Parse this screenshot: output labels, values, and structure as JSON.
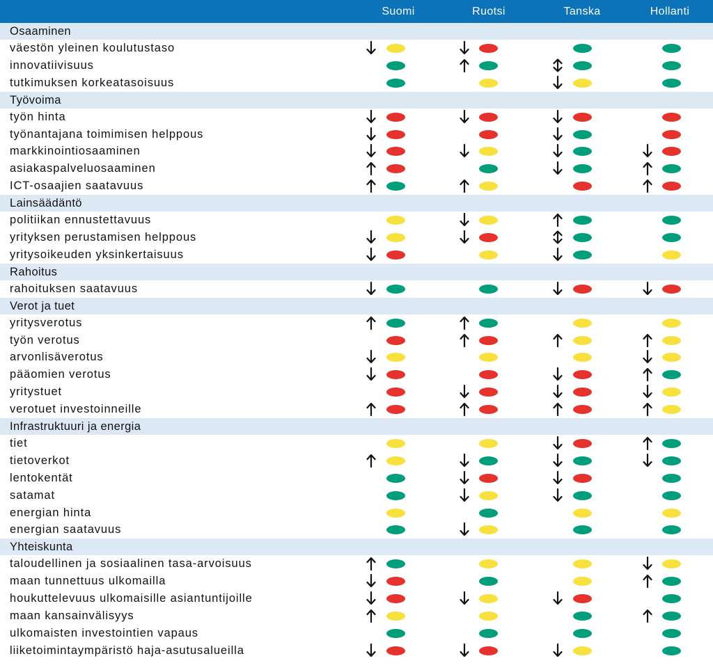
{
  "colors": {
    "header_bg": "#0c73b8",
    "category_bg": "#dce9f4",
    "green": "#009e7a",
    "yellow": "#f8e03f",
    "red": "#e5322d"
  },
  "countries": [
    "Suomi",
    "Ruotsi",
    "Tanska",
    "Hollanti"
  ],
  "sections": [
    {
      "title": "Osaaminen",
      "rows": [
        {
          "label": "väestön yleinen koulutustaso",
          "cells": [
            [
              "down",
              "yellow"
            ],
            [
              "down",
              "red"
            ],
            [
              "",
              "green"
            ],
            [
              "",
              "green"
            ]
          ]
        },
        {
          "label": "innovatiivisuus",
          "cells": [
            [
              "",
              "green"
            ],
            [
              "up",
              "green"
            ],
            [
              "updown",
              "green"
            ],
            [
              "",
              "green"
            ]
          ]
        },
        {
          "label": "tutkimuksen korkeatasoisuus",
          "cells": [
            [
              "",
              "green"
            ],
            [
              "",
              "yellow"
            ],
            [
              "down",
              "yellow"
            ],
            [
              "",
              "green"
            ]
          ]
        }
      ]
    },
    {
      "title": "Työvoima",
      "rows": [
        {
          "label": "työn hinta",
          "cells": [
            [
              "down",
              "red"
            ],
            [
              "down",
              "red"
            ],
            [
              "down",
              "red"
            ],
            [
              "",
              "red"
            ]
          ]
        },
        {
          "label": "työnantajana toimimisen helppous",
          "cells": [
            [
              "down",
              "red"
            ],
            [
              "",
              "red"
            ],
            [
              "down",
              "green"
            ],
            [
              "",
              "red"
            ]
          ]
        },
        {
          "label": "markkinointiosaaminen",
          "cells": [
            [
              "down",
              "red"
            ],
            [
              "down",
              "yellow"
            ],
            [
              "down",
              "green"
            ],
            [
              "down",
              "red"
            ]
          ]
        },
        {
          "label": "asiakaspalveluosaaminen",
          "cells": [
            [
              "up",
              "red"
            ],
            [
              "",
              "green"
            ],
            [
              "down",
              "green"
            ],
            [
              "up",
              "green"
            ]
          ]
        },
        {
          "label": "ICT-osaajien saatavuus",
          "cells": [
            [
              "up",
              "green"
            ],
            [
              "up",
              "yellow"
            ],
            [
              "",
              "red"
            ],
            [
              "up",
              "red"
            ]
          ]
        }
      ]
    },
    {
      "title": "Lainsäädäntö",
      "rows": [
        {
          "label": "politiikan ennustettavuus",
          "cells": [
            [
              "",
              "yellow"
            ],
            [
              "down",
              "yellow"
            ],
            [
              "up",
              "green"
            ],
            [
              "",
              "green"
            ]
          ]
        },
        {
          "label": "yrityksen perustamisen helppous",
          "cells": [
            [
              "down",
              "yellow"
            ],
            [
              "down",
              "red"
            ],
            [
              "updown",
              "green"
            ],
            [
              "",
              "green"
            ]
          ]
        },
        {
          "label": "yritysoikeuden yksinkertaisuus",
          "cells": [
            [
              "down",
              "red"
            ],
            [
              "",
              "yellow"
            ],
            [
              "down",
              "green"
            ],
            [
              "",
              "yellow"
            ]
          ]
        }
      ]
    },
    {
      "title": "Rahoitus",
      "rows": [
        {
          "label": "rahoituksen saatavuus",
          "cells": [
            [
              "down",
              "green"
            ],
            [
              "",
              "green"
            ],
            [
              "down",
              "red"
            ],
            [
              "down",
              "red"
            ]
          ]
        }
      ]
    },
    {
      "title": "Verot ja tuet",
      "rows": [
        {
          "label": "yritysverotus",
          "cells": [
            [
              "up",
              "green"
            ],
            [
              "up",
              "green"
            ],
            [
              "",
              "yellow"
            ],
            [
              "",
              "yellow"
            ]
          ]
        },
        {
          "label": "työn verotus",
          "cells": [
            [
              "",
              "red"
            ],
            [
              "up",
              "red"
            ],
            [
              "up",
              "yellow"
            ],
            [
              "up",
              "yellow"
            ]
          ]
        },
        {
          "label": "arvonlisäverotus",
          "cells": [
            [
              "down",
              "yellow"
            ],
            [
              "",
              "yellow"
            ],
            [
              "",
              "yellow"
            ],
            [
              "down",
              "yellow"
            ]
          ]
        },
        {
          "label": "pääomien verotus",
          "cells": [
            [
              "down",
              "red"
            ],
            [
              "",
              "red"
            ],
            [
              "down",
              "red"
            ],
            [
              "up",
              "green"
            ]
          ]
        },
        {
          "label": "yritystuet",
          "cells": [
            [
              "",
              "red"
            ],
            [
              "down",
              "red"
            ],
            [
              "down",
              "red"
            ],
            [
              "down",
              "yellow"
            ]
          ]
        },
        {
          "label": "verotuet investoinneille",
          "cells": [
            [
              "up",
              "red"
            ],
            [
              "up",
              "red"
            ],
            [
              "up",
              "red"
            ],
            [
              "up",
              "yellow"
            ]
          ]
        }
      ]
    },
    {
      "title": "Infrastruktuuri ja energia",
      "rows": [
        {
          "label": "tiet",
          "cells": [
            [
              "",
              "yellow"
            ],
            [
              "",
              "yellow"
            ],
            [
              "down",
              "red"
            ],
            [
              "up",
              "green"
            ]
          ]
        },
        {
          "label": "tietoverkot",
          "cells": [
            [
              "up",
              "yellow"
            ],
            [
              "down",
              "green"
            ],
            [
              "down",
              "green"
            ],
            [
              "down",
              "green"
            ]
          ]
        },
        {
          "label": "lentokentät",
          "cells": [
            [
              "",
              "green"
            ],
            [
              "down",
              "red"
            ],
            [
              "down",
              "red"
            ],
            [
              "",
              "green"
            ]
          ]
        },
        {
          "label": "satamat",
          "cells": [
            [
              "",
              "green"
            ],
            [
              "down",
              "yellow"
            ],
            [
              "down",
              "green"
            ],
            [
              "",
              "green"
            ]
          ]
        },
        {
          "label": "energian hinta",
          "cells": [
            [
              "",
              "yellow"
            ],
            [
              "",
              "green"
            ],
            [
              "",
              "yellow"
            ],
            [
              "",
              "yellow"
            ]
          ]
        },
        {
          "label": "energian saatavuus",
          "cells": [
            [
              "",
              "green"
            ],
            [
              "down",
              "yellow"
            ],
            [
              "",
              "green"
            ],
            [
              "",
              "green"
            ]
          ]
        }
      ]
    },
    {
      "title": "Yhteiskunta",
      "rows": [
        {
          "label": "taloudellinen ja sosiaalinen tasa-arvoisuus",
          "cells": [
            [
              "up",
              "green"
            ],
            [
              "",
              "yellow"
            ],
            [
              "",
              "yellow"
            ],
            [
              "down",
              "yellow"
            ]
          ]
        },
        {
          "label": "maan tunnettuus ulkomailla",
          "cells": [
            [
              "down",
              "red"
            ],
            [
              "",
              "green"
            ],
            [
              "",
              "yellow"
            ],
            [
              "up",
              "green"
            ]
          ]
        },
        {
          "label": "houkuttelevuus ulkomaisille asiantuntijoille",
          "cells": [
            [
              "down",
              "red"
            ],
            [
              "down",
              "yellow"
            ],
            [
              "down",
              "red"
            ],
            [
              "",
              "green"
            ]
          ]
        },
        {
          "label": "maan kansainvälisyys",
          "cells": [
            [
              "up",
              "yellow"
            ],
            [
              "",
              "yellow"
            ],
            [
              "",
              "green"
            ],
            [
              "up",
              "green"
            ]
          ]
        },
        {
          "label": "ulkomaisten investointien vapaus",
          "cells": [
            [
              "",
              "green"
            ],
            [
              "",
              "green"
            ],
            [
              "",
              "green"
            ],
            [
              "",
              "green"
            ]
          ]
        },
        {
          "label": "liiketoimintaympäristö haja-asutusalueilla",
          "cells": [
            [
              "down",
              "red"
            ],
            [
              "down",
              "red"
            ],
            [
              "down",
              "yellow"
            ],
            [
              "",
              "green"
            ]
          ]
        }
      ]
    }
  ]
}
